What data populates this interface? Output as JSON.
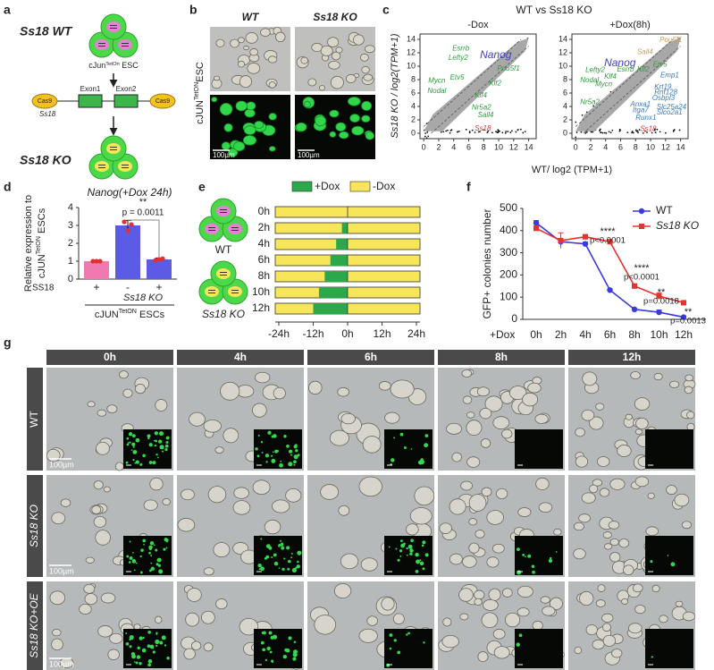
{
  "panel_labels": [
    "a",
    "b",
    "c",
    "d",
    "e",
    "f",
    "g"
  ],
  "panel_a": {
    "top_label": "Ss18 WT",
    "cell_line": [
      "cJun",
      "TetOn",
      " ESC"
    ],
    "exons": [
      "Exon1",
      "Exon2"
    ],
    "cas9": [
      "Cas9",
      "Cas9"
    ],
    "gene": "Ss18",
    "bottom_label": "Ss18 KO"
  },
  "panel_b": {
    "columns": [
      "WT",
      "Ss18 KO"
    ],
    "row_label": [
      "cJUN",
      "TetON",
      "ESC"
    ],
    "scale_bars": [
      "100µm",
      "100µm"
    ]
  },
  "panel_c": {
    "title": "WT vs Ss18 KO",
    "subplots": [
      "-Dox",
      "+Dox(8h)"
    ],
    "y_label": "Ss18 KO / log2(TPM+1)",
    "x_label": "WT/ log2 (TPM+1)",
    "xlim": [
      -0.5,
      15
    ],
    "ylim": [
      -0.8,
      14.8
    ],
    "xticks": [
      0,
      2,
      4,
      6,
      8,
      10,
      12,
      14
    ],
    "yticks": [
      0,
      2,
      4,
      6,
      8,
      10,
      12,
      14
    ],
    "genes": [
      [
        {
          "label": "Esrrb",
          "color": "#2e9e3e"
        },
        {
          "label": "Lefty2",
          "color": "#2e9e3e"
        },
        {
          "label": "Nanog",
          "color": "#4040c8"
        },
        {
          "label": "Pou5f1",
          "color": "#2e9e3e"
        },
        {
          "label": "Mycn",
          "color": "#2e9e3e"
        },
        {
          "label": "Etv5",
          "color": "#2e9e3e"
        },
        {
          "label": "Klf2",
          "color": "#2e9e3e"
        },
        {
          "label": "Nodal",
          "color": "#2e9e3e"
        },
        {
          "label": "Klf4",
          "color": "#2e9e3e"
        },
        {
          "label": "Nr5a2",
          "color": "#2e9e3e"
        },
        {
          "label": "Sall4",
          "color": "#2e9e3e"
        },
        {
          "label": "Ss18",
          "color": "#e03030"
        }
      ],
      [
        {
          "label": "Pou5f1",
          "color": "#d49a4a"
        },
        {
          "label": "Sall4",
          "color": "#d49a4a"
        },
        {
          "label": "Etv5",
          "color": "#2e9e3e"
        },
        {
          "label": "Nanog",
          "color": "#4040c8"
        },
        {
          "label": "Lefty2",
          "color": "#2e9e3e"
        },
        {
          "label": "Esrrb",
          "color": "#2e9e3e"
        },
        {
          "label": "Klf2",
          "color": "#2e9e3e"
        },
        {
          "label": "Klf4",
          "color": "#2e9e3e"
        },
        {
          "label": "Nodal",
          "color": "#2e9e3e"
        },
        {
          "label": "Mycn",
          "color": "#2e9e3e"
        },
        {
          "label": "Nr5a2",
          "color": "#2e9e3e"
        },
        {
          "label": "Emp1",
          "color": "#3a7ac0"
        },
        {
          "label": "Krt19",
          "color": "#3a7ac0"
        },
        {
          "label": "Rnf128",
          "color": "#3a7ac0"
        },
        {
          "label": "Osbpl3",
          "color": "#3a7ac0"
        },
        {
          "label": "Anxa1",
          "color": "#3a7ac0"
        },
        {
          "label": "Slc25a24",
          "color": "#3a7ac0"
        },
        {
          "label": "Itga7",
          "color": "#3a7ac0"
        },
        {
          "label": "Slco2a1",
          "color": "#3a7ac0"
        },
        {
          "label": "Runx1",
          "color": "#3a7ac0"
        },
        {
          "label": "Ss18",
          "color": "#e03030"
        }
      ]
    ]
  },
  "chart_data": [
    {
      "type": "bar",
      "title": "Nanog(+Dox 24h)",
      "y_label": "Relative expression to",
      "y_label_2": [
        "cJUN",
        "TetON",
        " ESCs"
      ],
      "row_label": "SS18",
      "categories": [
        "+",
        "-",
        "+"
      ],
      "values": [
        1.0,
        3.0,
        1.1
      ],
      "errors": [
        0.02,
        0.28,
        0.08
      ],
      "points": [
        [
          1.0,
          1.0,
          1.0
        ],
        [
          3.2,
          2.7,
          3.05
        ],
        [
          1.05,
          1.1,
          1.14
        ]
      ],
      "colors": [
        "#f07ab0",
        "#5b5be6",
        "#5b5be6"
      ],
      "point_color": "#e03030",
      "ylim": [
        0,
        4
      ],
      "yticks": [
        0,
        1,
        2,
        3,
        4
      ],
      "group_label": "Ss18 KO",
      "footer": [
        "cJUN",
        "TetON",
        " ESCs"
      ],
      "annotations": [
        "**",
        "p = 0.0011"
      ]
    },
    {
      "type": "gantt",
      "legend": [
        {
          "name": "+Dox",
          "color": "#2ca84a"
        },
        {
          "name": "-Dox",
          "color": "#f7e55a"
        }
      ],
      "categories": [
        "0h",
        "2h",
        "4h",
        "6h",
        "8h",
        "10h",
        "12h"
      ],
      "values": [
        0,
        2,
        4,
        6,
        8,
        10,
        12
      ],
      "xlim": [
        -24,
        24
      ],
      "xticks": [
        {
          "value": -24,
          "label": "-24h"
        },
        {
          "value": -12,
          "label": "-12h"
        },
        {
          "value": 0,
          "label": "0h"
        },
        {
          "value": 12,
          "label": "12h"
        },
        {
          "value": 24,
          "label": "24h"
        }
      ],
      "group_labels": [
        "WT",
        "Ss18 KO"
      ]
    },
    {
      "type": "line",
      "y_label": "GFP+ colonies number",
      "x_prefix": "+Dox",
      "categories": [
        "0h",
        "2h",
        "4h",
        "6h",
        "8h",
        "10h",
        "12h"
      ],
      "series": [
        {
          "name": "WT",
          "color": "#3a3ae0",
          "values": [
            435,
            350,
            340,
            132,
            45,
            32,
            10
          ],
          "errors": [
            10,
            8,
            8,
            6,
            4,
            10,
            4
          ]
        },
        {
          "name": "Ss18 KO",
          "color": "#e8322e",
          "values": [
            410,
            355,
            372,
            350,
            150,
            105,
            75
          ],
          "errors": [
            12,
            35,
            10,
            5,
            10,
            15,
            8
          ]
        }
      ],
      "ylim": [
        0,
        500
      ],
      "yticks": [
        0,
        100,
        200,
        300,
        400,
        500
      ],
      "legend": "upper right",
      "annotations": [
        {
          "stars": "****",
          "p": "p<0.0001"
        },
        {
          "stars": "****",
          "p": "p<0.0001"
        },
        {
          "stars": "**",
          "p": "p=0.0018"
        },
        {
          "stars": "**",
          "p": "p=0.0013"
        }
      ]
    }
  ],
  "panel_g": {
    "columns": [
      "0h",
      "4h",
      "6h",
      "8h",
      "12h"
    ],
    "rows": [
      "WT",
      "Ss18 KO",
      "Ss18 KO+OE"
    ],
    "scale_bars": [
      "100µm",
      "100µm",
      "100µm"
    ]
  }
}
